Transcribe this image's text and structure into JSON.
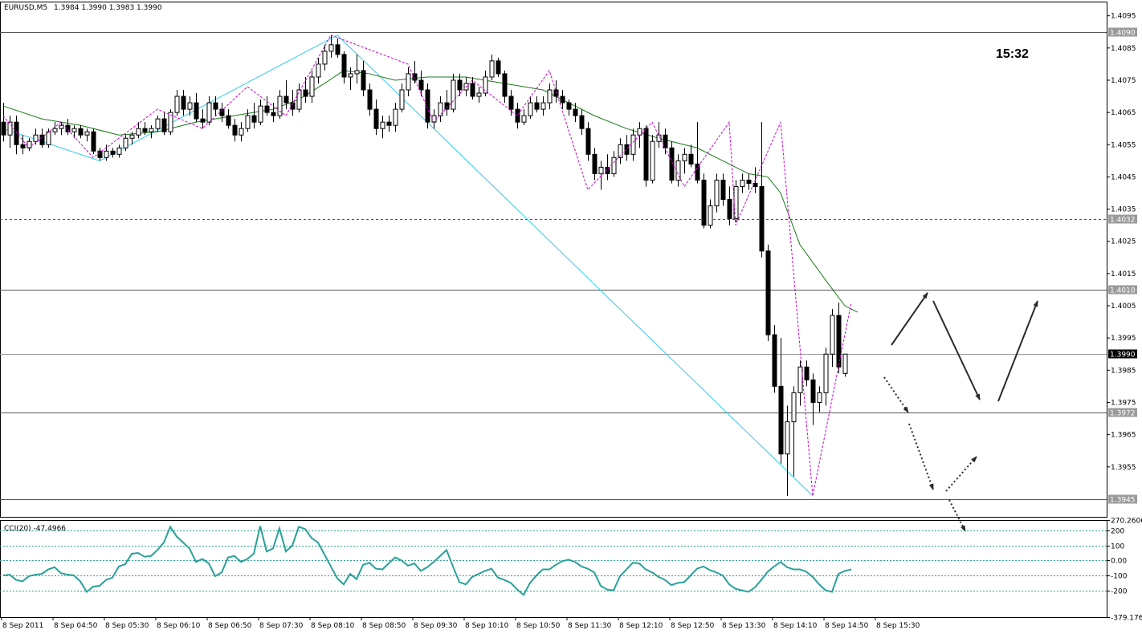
{
  "header": {
    "symbol": "EURUSD,M5",
    "ohlc": "1.3984 1.3990 1.3983 1.3990"
  },
  "clock": "15:32",
  "cci_label": "CCI(20) -47.4966",
  "colors": {
    "background": "#ffffff",
    "candle": "#000000",
    "ma": "#1a7a1a",
    "zigzag": "#cc00cc",
    "trendline": "#33ccee",
    "cci": "#2aa198",
    "arrow": "#2a2a2a"
  },
  "chart_data": [
    {
      "type": "candlestick",
      "title": "EURUSD,M5",
      "price_ticks": [
        "1.4095",
        "1.4085",
        "1.4075",
        "1.4065",
        "1.4055",
        "1.4045",
        "1.4035",
        "1.4025",
        "1.4015",
        "1.4005",
        "1.3995",
        "1.3985",
        "1.3975",
        "1.3965",
        "1.3955"
      ],
      "ylim": [
        1.39395,
        1.40994
      ],
      "time_labels": [
        "8 Sep 2011",
        "8 Sep 04:50",
        "8 Sep 05:30",
        "8 Sep 06:10",
        "8 Sep 06:50",
        "8 Sep 07:30",
        "8 Sep 08:10",
        "8 Sep 08:50",
        "8 Sep 09:30",
        "8 Sep 10:10",
        "8 Sep 10:50",
        "8 Sep 11:30",
        "8 Sep 12:10",
        "8 Sep 12:50",
        "8 Sep 13:30",
        "8 Sep 14:10",
        "8 Sep 14:50",
        "8 Sep 15:30"
      ],
      "level_lines": [
        {
          "price": 1.409,
          "label": "1.4090",
          "style": "solid"
        },
        {
          "price": 1.4032,
          "label": "1.4032",
          "style": "dashed"
        },
        {
          "price": 1.401,
          "label": "1.4010",
          "style": "solid"
        },
        {
          "price": 1.399,
          "label": "1.3990",
          "style": "current"
        },
        {
          "price": 1.3972,
          "label": "1.3972",
          "style": "solid"
        },
        {
          "price": 1.3945,
          "label": "1.3945",
          "style": "solid"
        }
      ],
      "candles": [
        [
          1.4062,
          1.4068,
          1.4056,
          1.4058
        ],
        [
          1.4058,
          1.4064,
          1.4054,
          1.4062
        ],
        [
          1.4062,
          1.4064,
          1.4052,
          1.4055
        ],
        [
          1.4055,
          1.4058,
          1.4052,
          1.4054
        ],
        [
          1.4054,
          1.4057,
          1.4053,
          1.4056
        ],
        [
          1.4056,
          1.406,
          1.4055,
          1.4058
        ],
        [
          1.4058,
          1.406,
          1.4054,
          1.4055
        ],
        [
          1.4055,
          1.406,
          1.4054,
          1.4059
        ],
        [
          1.4059,
          1.4062,
          1.4058,
          1.406
        ],
        [
          1.406,
          1.4062,
          1.4058,
          1.4061
        ],
        [
          1.4061,
          1.4063,
          1.4058,
          1.4059
        ],
        [
          1.4059,
          1.4061,
          1.4057,
          1.406
        ],
        [
          1.406,
          1.4061,
          1.4057,
          1.4058
        ],
        [
          1.4058,
          1.406,
          1.4056,
          1.4059
        ],
        [
          1.4059,
          1.406,
          1.4052,
          1.4053
        ],
        [
          1.4053,
          1.4054,
          1.405,
          1.4051
        ],
        [
          1.4051,
          1.4055,
          1.405,
          1.4053
        ],
        [
          1.4053,
          1.4054,
          1.4051,
          1.4052
        ],
        [
          1.4052,
          1.4055,
          1.4051,
          1.4054
        ],
        [
          1.4054,
          1.4058,
          1.4053,
          1.4057
        ],
        [
          1.4057,
          1.4059,
          1.4055,
          1.4058
        ],
        [
          1.4058,
          1.4062,
          1.4057,
          1.406
        ],
        [
          1.406,
          1.4062,
          1.4058,
          1.4059
        ],
        [
          1.4059,
          1.4061,
          1.4057,
          1.406
        ],
        [
          1.406,
          1.4064,
          1.4059,
          1.4063
        ],
        [
          1.4063,
          1.4065,
          1.4058,
          1.4059
        ],
        [
          1.4059,
          1.4066,
          1.4058,
          1.4065
        ],
        [
          1.4065,
          1.4072,
          1.4064,
          1.407
        ],
        [
          1.407,
          1.4072,
          1.4064,
          1.4066
        ],
        [
          1.4066,
          1.407,
          1.4064,
          1.4068
        ],
        [
          1.4068,
          1.4071,
          1.4062,
          1.4063
        ],
        [
          1.4063,
          1.4066,
          1.406,
          1.4062
        ],
        [
          1.4062,
          1.407,
          1.4061,
          1.4068
        ],
        [
          1.4068,
          1.407,
          1.4064,
          1.4066
        ],
        [
          1.4066,
          1.4068,
          1.4062,
          1.4064
        ],
        [
          1.4064,
          1.4066,
          1.406,
          1.4061
        ],
        [
          1.4061,
          1.4063,
          1.4056,
          1.4058
        ],
        [
          1.4058,
          1.4062,
          1.4056,
          1.406
        ],
        [
          1.406,
          1.4066,
          1.4059,
          1.4064
        ],
        [
          1.4064,
          1.4068,
          1.406,
          1.4062
        ],
        [
          1.4062,
          1.4069,
          1.4061,
          1.4067
        ],
        [
          1.4067,
          1.407,
          1.4064,
          1.4065
        ],
        [
          1.4065,
          1.4068,
          1.4062,
          1.4064
        ],
        [
          1.4064,
          1.4072,
          1.4063,
          1.407
        ],
        [
          1.407,
          1.4075,
          1.4066,
          1.4068
        ],
        [
          1.4068,
          1.4072,
          1.4064,
          1.4066
        ],
        [
          1.4066,
          1.4074,
          1.4065,
          1.4072
        ],
        [
          1.4072,
          1.4076,
          1.4068,
          1.407
        ],
        [
          1.407,
          1.4078,
          1.4068,
          1.4076
        ],
        [
          1.4076,
          1.4082,
          1.4074,
          1.408
        ],
        [
          1.408,
          1.4086,
          1.4078,
          1.4084
        ],
        [
          1.4084,
          1.4089,
          1.4082,
          1.4086
        ],
        [
          1.4086,
          1.4088,
          1.4082,
          1.4083
        ],
        [
          1.4083,
          1.4084,
          1.4074,
          1.4076
        ],
        [
          1.4076,
          1.4079,
          1.4072,
          1.4077
        ],
        [
          1.4077,
          1.4083,
          1.4074,
          1.4078
        ],
        [
          1.4078,
          1.4081,
          1.407,
          1.4072
        ],
        [
          1.4072,
          1.4074,
          1.4064,
          1.4066
        ],
        [
          1.4066,
          1.4069,
          1.4058,
          1.406
        ],
        [
          1.406,
          1.4064,
          1.4057,
          1.4062
        ],
        [
          1.4062,
          1.4064,
          1.4059,
          1.4061
        ],
        [
          1.4061,
          1.4068,
          1.4059,
          1.4066
        ],
        [
          1.4066,
          1.4074,
          1.4065,
          1.4072
        ],
        [
          1.4072,
          1.4079,
          1.407,
          1.4077
        ],
        [
          1.4077,
          1.4081,
          1.4074,
          1.4075
        ],
        [
          1.4075,
          1.4078,
          1.407,
          1.4072
        ],
        [
          1.4072,
          1.4074,
          1.406,
          1.4062
        ],
        [
          1.4062,
          1.4066,
          1.406,
          1.4064
        ],
        [
          1.4064,
          1.407,
          1.4062,
          1.4068
        ],
        [
          1.4068,
          1.4072,
          1.4064,
          1.4066
        ],
        [
          1.4066,
          1.4077,
          1.4065,
          1.4075
        ],
        [
          1.4075,
          1.4077,
          1.407,
          1.4072
        ],
        [
          1.4072,
          1.4076,
          1.407,
          1.4074
        ],
        [
          1.4074,
          1.4076,
          1.4069,
          1.407
        ],
        [
          1.407,
          1.4073,
          1.4068,
          1.4071
        ],
        [
          1.4071,
          1.4078,
          1.407,
          1.4076
        ],
        [
          1.4076,
          1.4083,
          1.4075,
          1.4081
        ],
        [
          1.4081,
          1.4082,
          1.4076,
          1.4077
        ],
        [
          1.4077,
          1.4078,
          1.4068,
          1.407
        ],
        [
          1.407,
          1.4072,
          1.4064,
          1.4066
        ],
        [
          1.4066,
          1.4068,
          1.406,
          1.4062
        ],
        [
          1.4062,
          1.4066,
          1.4061,
          1.4064
        ],
        [
          1.4064,
          1.407,
          1.4063,
          1.4068
        ],
        [
          1.4068,
          1.407,
          1.4065,
          1.4066
        ],
        [
          1.4066,
          1.407,
          1.4064,
          1.4068
        ],
        [
          1.4068,
          1.4074,
          1.4066,
          1.4072
        ],
        [
          1.4072,
          1.4075,
          1.4068,
          1.407
        ],
        [
          1.407,
          1.4072,
          1.4066,
          1.4068
        ],
        [
          1.4068,
          1.4069,
          1.4064,
          1.4066
        ],
        [
          1.4066,
          1.4068,
          1.4062,
          1.4064
        ],
        [
          1.4064,
          1.4066,
          1.4058,
          1.406
        ],
        [
          1.406,
          1.4062,
          1.405,
          1.4052
        ],
        [
          1.4052,
          1.4054,
          1.4044,
          1.4046
        ],
        [
          1.4046,
          1.405,
          1.4041,
          1.4048
        ],
        [
          1.4048,
          1.4052,
          1.4044,
          1.4046
        ],
        [
          1.4046,
          1.4053,
          1.4045,
          1.4051
        ],
        [
          1.4051,
          1.4057,
          1.4049,
          1.4055
        ],
        [
          1.4055,
          1.4058,
          1.405,
          1.4052
        ],
        [
          1.4052,
          1.406,
          1.405,
          1.4058
        ],
        [
          1.4058,
          1.4062,
          1.4054,
          1.406
        ],
        [
          1.406,
          1.4061,
          1.4042,
          1.4044
        ],
        [
          1.4044,
          1.4058,
          1.4043,
          1.4056
        ],
        [
          1.4056,
          1.4062,
          1.4054,
          1.4058
        ],
        [
          1.4058,
          1.406,
          1.4052,
          1.4054
        ],
        [
          1.4054,
          1.4056,
          1.4043,
          1.4044
        ],
        [
          1.4044,
          1.4052,
          1.4042,
          1.405
        ],
        [
          1.405,
          1.4054,
          1.4046,
          1.4052
        ],
        [
          1.4052,
          1.4055,
          1.4048,
          1.4049
        ],
        [
          1.4049,
          1.4062,
          1.4043,
          1.4044
        ],
        [
          1.4044,
          1.4046,
          1.4029,
          1.403
        ],
        [
          1.403,
          1.4038,
          1.4029,
          1.4036
        ],
        [
          1.4036,
          1.4046,
          1.4034,
          1.4044
        ],
        [
          1.4044,
          1.4046,
          1.4036,
          1.4038
        ],
        [
          1.4038,
          1.4042,
          1.403,
          1.4032
        ],
        [
          1.4032,
          1.4044,
          1.4031,
          1.4042
        ],
        [
          1.4042,
          1.4046,
          1.404,
          1.4044
        ],
        [
          1.4044,
          1.4046,
          1.4041,
          1.4043
        ],
        [
          1.4043,
          1.4048,
          1.404,
          1.4042
        ],
        [
          1.4042,
          1.4062,
          1.402,
          1.4022
        ],
        [
          1.4022,
          1.4024,
          1.3994,
          1.3996
        ],
        [
          1.3996,
          1.3999,
          1.3978,
          1.398
        ],
        [
          1.398,
          1.3995,
          1.3956,
          1.3959
        ],
        [
          1.3959,
          1.3974,
          1.3946,
          1.3969
        ],
        [
          1.3969,
          1.398,
          1.3952,
          1.3978
        ],
        [
          1.3978,
          1.3988,
          1.3974,
          1.3986
        ],
        [
          1.3986,
          1.3988,
          1.398,
          1.3982
        ],
        [
          1.3982,
          1.3984,
          1.3968,
          1.3975
        ],
        [
          1.3975,
          1.398,
          1.3972,
          1.3978
        ],
        [
          1.3978,
          1.3992,
          1.3974,
          1.399
        ],
        [
          1.399,
          1.4004,
          1.3986,
          1.4002
        ],
        [
          1.4002,
          1.4006,
          1.3984,
          1.3986
        ],
        [
          1.3984,
          1.399,
          1.3983,
          1.399
        ]
      ],
      "moving_average": [
        [
          0,
          1.4067
        ],
        [
          6,
          1.4063
        ],
        [
          12,
          1.4061
        ],
        [
          18,
          1.4058
        ],
        [
          24,
          1.4059
        ],
        [
          30,
          1.4062
        ],
        [
          36,
          1.4064
        ],
        [
          42,
          1.4066
        ],
        [
          46,
          1.4069
        ],
        [
          50,
          1.4074
        ],
        [
          53,
          1.4078
        ],
        [
          57,
          1.4077
        ],
        [
          61,
          1.4075
        ],
        [
          66,
          1.4076
        ],
        [
          72,
          1.4076
        ],
        [
          78,
          1.4074
        ],
        [
          84,
          1.4072
        ],
        [
          88,
          1.4068
        ],
        [
          92,
          1.4064
        ],
        [
          97,
          1.406
        ],
        [
          102,
          1.4057
        ],
        [
          108,
          1.4054
        ],
        [
          112,
          1.405
        ],
        [
          116,
          1.4046
        ],
        [
          119,
          1.4045
        ],
        [
          121,
          1.404
        ],
        [
          124,
          1.4024
        ],
        [
          128,
          1.4013
        ],
        [
          131,
          1.4005
        ],
        [
          133,
          1.4003
        ]
      ],
      "zigzag": [
        [
          0,
          1.4064
        ],
        [
          4,
          1.4054
        ],
        [
          9,
          1.4062
        ],
        [
          14,
          1.4051
        ],
        [
          24,
          1.4066
        ],
        [
          31,
          1.406
        ],
        [
          38,
          1.4073
        ],
        [
          44,
          1.4064
        ],
        [
          51,
          1.4089
        ],
        [
          63,
          1.408
        ],
        [
          67,
          1.4062
        ],
        [
          73,
          1.4075
        ],
        [
          80,
          1.4064
        ],
        [
          85,
          1.4078
        ],
        [
          91,
          1.4041
        ],
        [
          101,
          1.4062
        ],
        [
          106,
          1.4042
        ],
        [
          113,
          1.4062
        ],
        [
          114,
          1.403
        ],
        [
          121,
          1.4062
        ],
        [
          126,
          1.3946
        ],
        [
          132,
          1.4006
        ]
      ],
      "trendlines": [
        [
          [
            0,
            1.406
          ],
          [
            15,
            1.405
          ]
        ],
        [
          [
            15,
            1.405
          ],
          [
            52,
            1.4089
          ]
        ],
        [
          [
            52,
            1.4089
          ],
          [
            126,
            1.3946
          ]
        ]
      ]
    },
    {
      "type": "line",
      "title": "CCI(20) -47.4966",
      "ylim": [
        -379.176,
        270.2606
      ],
      "level_labels": [
        "270.2606",
        "200",
        "100",
        "0.00",
        "-100",
        "-200",
        "-379.176"
      ],
      "values": [
        -100,
        -95,
        -130,
        -140,
        -105,
        -95,
        -90,
        -60,
        -45,
        -85,
        -95,
        -100,
        -140,
        -210,
        -175,
        -170,
        -130,
        -115,
        -40,
        -25,
        45,
        50,
        25,
        30,
        70,
        120,
        225,
        160,
        120,
        80,
        -10,
        10,
        -20,
        -105,
        -80,
        20,
        30,
        -10,
        10,
        45,
        230,
        60,
        80,
        215,
        60,
        100,
        225,
        210,
        150,
        120,
        40,
        -40,
        -120,
        -160,
        -90,
        -125,
        -30,
        -15,
        -55,
        -60,
        -20,
        20,
        0,
        -35,
        -20,
        -70,
        -45,
        -10,
        30,
        70,
        -40,
        -145,
        -160,
        -110,
        -90,
        -70,
        -55,
        -115,
        -130,
        -150,
        -195,
        -230,
        -150,
        -100,
        -60,
        -60,
        -30,
        -5,
        5,
        -10,
        -40,
        -55,
        -80,
        -170,
        -195,
        -200,
        -105,
        -60,
        -15,
        -20,
        -60,
        -80,
        -110,
        -130,
        -165,
        -150,
        -145,
        -100,
        -55,
        -40,
        -65,
        -80,
        -100,
        -160,
        -190,
        -200,
        -210,
        -180,
        -130,
        -75,
        -40,
        -10,
        -45,
        -60,
        -60,
        -75,
        -110,
        -160,
        -200,
        -210,
        -90,
        -70,
        -60
      ]
    }
  ]
}
